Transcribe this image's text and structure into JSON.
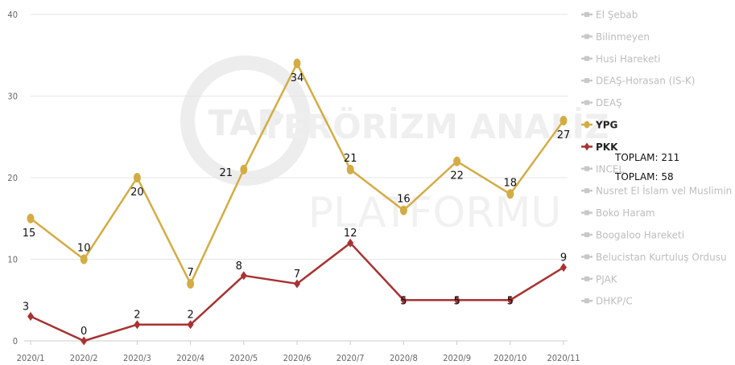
{
  "chart_data": {
    "type": "line",
    "categories": [
      "2020/1",
      "2020/2",
      "2020/3",
      "2020/4",
      "2020/5",
      "2020/6",
      "2020/7",
      "2020/8",
      "2020/9",
      "2020/10",
      "2020/11"
    ],
    "ylim": [
      0,
      40
    ],
    "yticks": [
      0,
      10,
      20,
      30,
      40
    ],
    "grid": true,
    "legend": "right",
    "series": [
      {
        "name": "YPG",
        "color": "#d4ac44",
        "marker": "circle",
        "values": [
          15,
          10,
          20,
          7,
          21,
          34,
          21,
          16,
          22,
          18,
          27
        ]
      },
      {
        "name": "PKK",
        "color": "#a83232",
        "marker": "diamond",
        "values": [
          3,
          0,
          2,
          2,
          8,
          7,
          12,
          5,
          5,
          5,
          9
        ]
      }
    ],
    "legend_items": [
      {
        "name": "El Şebab",
        "active": false
      },
      {
        "name": "Bilinmeyen",
        "active": false
      },
      {
        "name": "Husi Hareketi",
        "active": false
      },
      {
        "name": "DEAŞ-Horasan (IS-K)",
        "active": false
      },
      {
        "name": "DEAŞ",
        "active": false
      },
      {
        "name": "YPG",
        "active": true,
        "color": "#d4ac44"
      },
      {
        "name": "PKK",
        "active": true,
        "color": "#a83232"
      },
      {
        "name": "INCEL",
        "active": false
      },
      {
        "name": "Nusret El İslam vel Muslimin (JNIM)",
        "active": false
      },
      {
        "name": "Boko Haram",
        "active": false
      },
      {
        "name": "Boogaloo Hareketi",
        "active": false
      },
      {
        "name": "Belucistan Kurtuluş Ordusu",
        "active": false
      },
      {
        "name": "PJAK",
        "active": false
      },
      {
        "name": "DHKP/C",
        "active": false
      }
    ],
    "totals": [
      "TOPLAM: 211",
      "TOPLAM: 58"
    ],
    "watermark": {
      "logo": "TAP",
      "line1": "TERÖRİZM ANALİZ",
      "line2": "PLATFORMU"
    },
    "inactive_color": "#c8c8c8"
  }
}
